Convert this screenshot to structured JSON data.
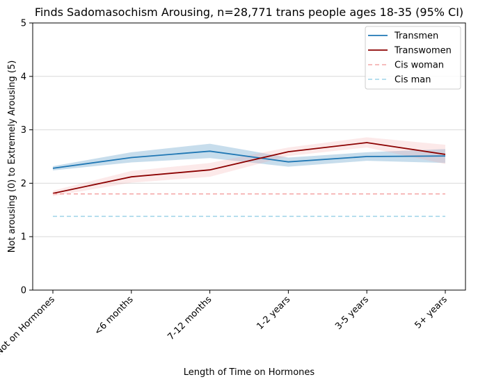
{
  "chart_data": {
    "type": "line",
    "title": "Finds Sadomasochism Arousing, n=28,771 trans people ages 18-35 (95% CI)",
    "xlabel": "Length of Time on Hormones",
    "ylabel": "Not arousing (0) to Extremely Arousing (5)",
    "categories": [
      "Not on Hormones",
      "<6 months",
      "7-12 months",
      "1-2 years",
      "3-5 years",
      "5+ years"
    ],
    "ylim": [
      0,
      5
    ],
    "yticks": [
      "0",
      "1",
      "2",
      "3",
      "4",
      "5"
    ],
    "grid": "horizontal",
    "legend_position": "top-right",
    "series": [
      {
        "name": "Transmen",
        "color": "#1f77b4",
        "style": "solid",
        "values": [
          2.28,
          2.48,
          2.6,
          2.4,
          2.5,
          2.51
        ],
        "ci_low": [
          2.24,
          2.39,
          2.47,
          2.31,
          2.42,
          2.38
        ],
        "ci_high": [
          2.32,
          2.58,
          2.74,
          2.48,
          2.58,
          2.64
        ]
      },
      {
        "name": "Transwomen",
        "color": "#8b0000",
        "band_color": "#f4a6a6",
        "style": "solid",
        "values": [
          1.81,
          2.12,
          2.25,
          2.59,
          2.76,
          2.54
        ],
        "ci_low": [
          1.76,
          2.01,
          2.12,
          2.51,
          2.67,
          2.36
        ],
        "ci_high": [
          1.86,
          2.23,
          2.38,
          2.67,
          2.86,
          2.72
        ]
      },
      {
        "name": "Cis woman",
        "color": "#f4a6a6",
        "style": "dashed",
        "values": [
          1.8,
          1.8,
          1.8,
          1.8,
          1.8,
          1.8
        ]
      },
      {
        "name": "Cis man",
        "color": "#9dd3e8",
        "style": "dashed",
        "values": [
          1.38,
          1.38,
          1.38,
          1.38,
          1.38,
          1.38
        ]
      }
    ]
  }
}
